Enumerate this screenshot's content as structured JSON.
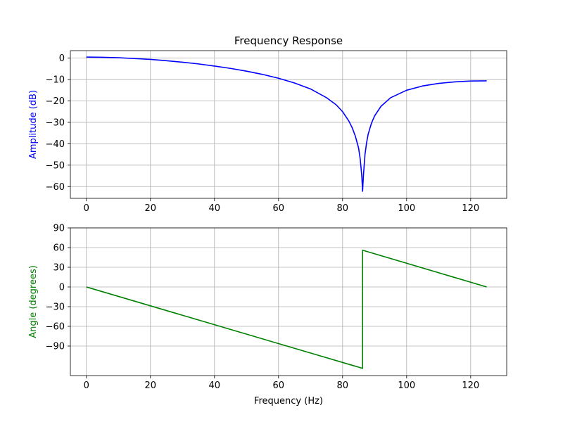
{
  "chart_data": [
    {
      "type": "line",
      "title": "Frequency Response",
      "xlabel": "",
      "ylabel": "Amplitude (dB)",
      "ylabel_color": "#0000ff",
      "xlim": [
        -5,
        131.25
      ],
      "ylim": [
        -65.5,
        3.5
      ],
      "xticks": [
        0,
        20,
        40,
        60,
        80,
        100,
        120
      ],
      "yticks": [
        0,
        -10,
        -20,
        -30,
        -40,
        -50,
        -60
      ],
      "grid": true,
      "series": [
        {
          "color": "#0000ff",
          "x": [
            0,
            5,
            10,
            15,
            20,
            25,
            30,
            35,
            40,
            45,
            50,
            55,
            60,
            65,
            70,
            75,
            78,
            80,
            82,
            83,
            84,
            85,
            85.5,
            86,
            86.25,
            86.5,
            87,
            87.5,
            88,
            89,
            90,
            92,
            95,
            100,
            105,
            110,
            115,
            120,
            125
          ],
          "y": [
            0.5,
            0.4,
            0.2,
            -0.2,
            -0.6,
            -1.2,
            -1.9,
            -2.7,
            -3.7,
            -4.8,
            -6.1,
            -7.6,
            -9.4,
            -11.6,
            -14.4,
            -18.5,
            -21.8,
            -25,
            -29.5,
            -32.5,
            -36.5,
            -42,
            -47,
            -55,
            -62.2,
            -55,
            -45,
            -39.5,
            -35.5,
            -30.5,
            -27,
            -22.5,
            -18.5,
            -15,
            -13,
            -11.8,
            -11.1,
            -10.7,
            -10.6
          ]
        }
      ]
    },
    {
      "type": "line",
      "title": "",
      "xlabel": "Frequency (Hz)",
      "ylabel": "Angle (degrees)",
      "ylabel_color": "#008000",
      "xlim": [
        -5,
        131.25
      ],
      "ylim": [
        -135,
        90
      ],
      "xticks": [
        0,
        20,
        40,
        60,
        80,
        100,
        120
      ],
      "yticks": [
        90,
        60,
        30,
        0,
        -30,
        -60,
        -90
      ],
      "grid": true,
      "series": [
        {
          "color": "#008000",
          "x": [
            0,
            86.25,
            86.25,
            125
          ],
          "y": [
            0,
            -124,
            56,
            0
          ]
        }
      ]
    }
  ]
}
